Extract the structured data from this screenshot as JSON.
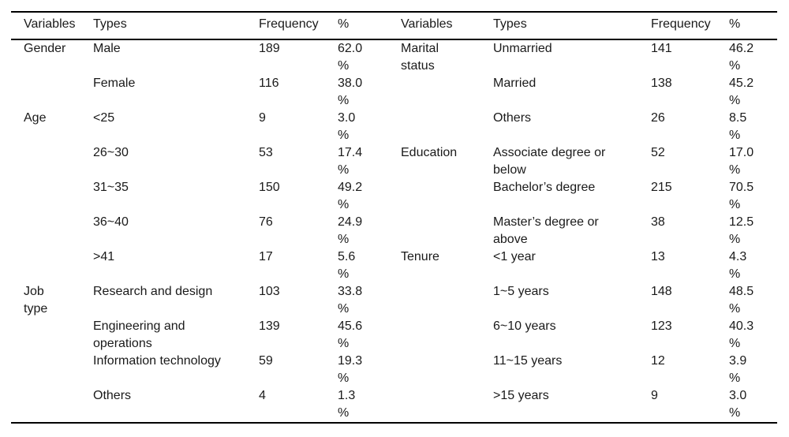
{
  "table": {
    "headers": [
      "Variables",
      "Types",
      "Frequency",
      "%",
      "Variables",
      "Types",
      "Frequency",
      "%"
    ],
    "percent_sign": "%",
    "left_rows": [
      {
        "variable": "Gender",
        "type": "Male",
        "frequency": "189",
        "percent": "62.0"
      },
      {
        "variable": "",
        "type": "Female",
        "frequency": "116",
        "percent": "38.0"
      },
      {
        "variable": "Age",
        "type": "<25",
        "frequency": "9",
        "percent": "3.0"
      },
      {
        "variable": "",
        "type": "26~30",
        "frequency": "53",
        "percent": "17.4"
      },
      {
        "variable": "",
        "type": "31~35",
        "frequency": "150",
        "percent": "49.2"
      },
      {
        "variable": "",
        "type": "36~40",
        "frequency": "76",
        "percent": "24.9"
      },
      {
        "variable": "",
        "type": ">41",
        "frequency": "17",
        "percent": "5.6"
      },
      {
        "variable": "Job type",
        "type": "Research and design",
        "frequency": "103",
        "percent": "33.8"
      },
      {
        "variable": "",
        "type": "Engineering and operations",
        "frequency": "139",
        "percent": "45.6"
      },
      {
        "variable": "",
        "type": "Information technology",
        "frequency": "59",
        "percent": "19.3"
      },
      {
        "variable": "",
        "type": "Others",
        "frequency": "4",
        "percent": "1.3"
      }
    ],
    "right_rows": [
      {
        "variable": "Marital status",
        "type": "Unmarried",
        "frequency": "141",
        "percent": "46.2"
      },
      {
        "variable": "",
        "type": "Married",
        "frequency": "138",
        "percent": "45.2"
      },
      {
        "variable": "",
        "type": "Others",
        "frequency": "26",
        "percent": "8.5"
      },
      {
        "variable": "Education",
        "type": "Associate degree or below",
        "frequency": "52",
        "percent": "17.0"
      },
      {
        "variable": "",
        "type": "Bachelor’s degree",
        "frequency": "215",
        "percent": "70.5"
      },
      {
        "variable": "",
        "type": "Master’s degree or above",
        "frequency": "38",
        "percent": "12.5"
      },
      {
        "variable": "Tenure",
        "type": "<1 year",
        "frequency": "13",
        "percent": "4.3"
      },
      {
        "variable": "",
        "type": "1~5 years",
        "frequency": "148",
        "percent": "48.5"
      },
      {
        "variable": "",
        "type": "6~10 years",
        "frequency": "123",
        "percent": "40.3"
      },
      {
        "variable": "",
        "type": "11~15 years",
        "frequency": "12",
        "percent": "3.9"
      },
      {
        "variable": "",
        "type": ">15 years",
        "frequency": "9",
        "percent": "3.0"
      }
    ]
  }
}
